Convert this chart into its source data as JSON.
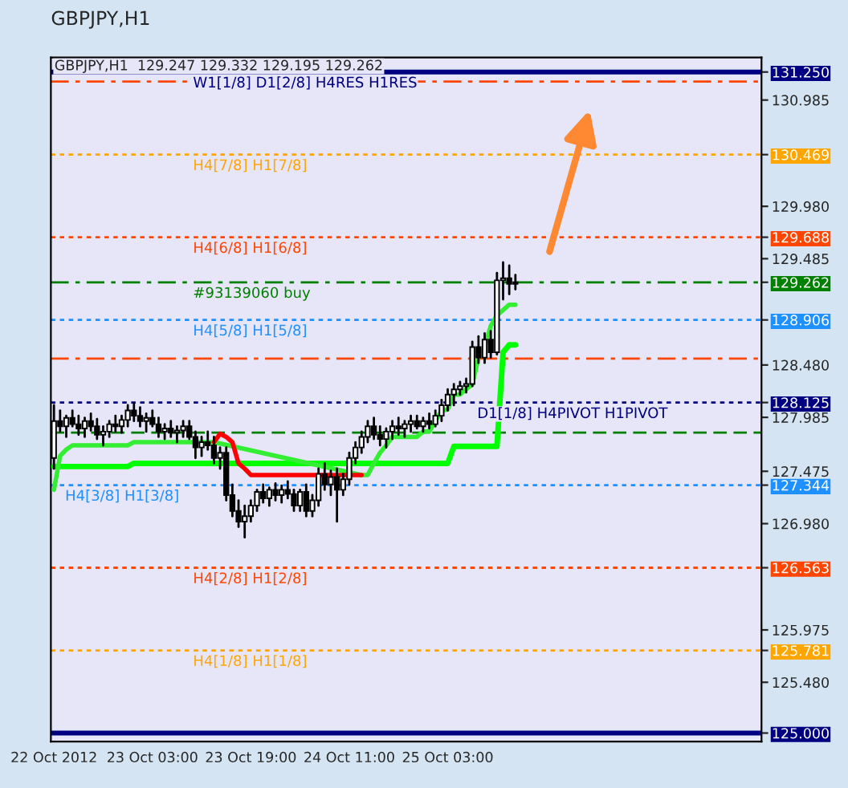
{
  "chart_data": {
    "type": "candlestick",
    "title": "GBPJPY,H1",
    "annotations": [
      "GBPJPY,H1  129.247 129.332 129.195 129.262"
    ],
    "x": [
      "2012-10-22T11:00",
      "2012-10-22T12:00",
      "2012-10-22T13:00",
      "2012-10-22T14:00",
      "2012-10-22T15:00",
      "2012-10-22T16:00",
      "2012-10-22T17:00",
      "2012-10-22T18:00",
      "2012-10-22T19:00",
      "2012-10-22T20:00",
      "2012-10-22T21:00",
      "2012-10-22T22:00",
      "2012-10-22T23:00",
      "2012-10-23T00:00",
      "2012-10-23T01:00",
      "2012-10-23T02:00",
      "2012-10-23T03:00",
      "2012-10-23T04:00",
      "2012-10-23T05:00",
      "2012-10-23T06:00",
      "2012-10-23T07:00",
      "2012-10-23T08:00",
      "2012-10-23T09:00",
      "2012-10-23T10:00",
      "2012-10-23T11:00",
      "2012-10-23T12:00",
      "2012-10-23T13:00",
      "2012-10-23T14:00",
      "2012-10-23T15:00",
      "2012-10-23T16:00",
      "2012-10-23T17:00",
      "2012-10-23T18:00",
      "2012-10-23T19:00",
      "2012-10-23T20:00",
      "2012-10-23T21:00",
      "2012-10-23T22:00",
      "2012-10-23T23:00",
      "2012-10-24T00:00",
      "2012-10-24T01:00",
      "2012-10-24T02:00",
      "2012-10-24T03:00",
      "2012-10-24T04:00",
      "2012-10-24T05:00",
      "2012-10-24T06:00",
      "2012-10-24T07:00",
      "2012-10-24T08:00",
      "2012-10-24T09:00",
      "2012-10-24T10:00",
      "2012-10-24T11:00",
      "2012-10-24T12:00",
      "2012-10-24T13:00",
      "2012-10-24T14:00",
      "2012-10-24T15:00",
      "2012-10-24T16:00",
      "2012-10-24T17:00",
      "2012-10-24T18:00",
      "2012-10-24T19:00",
      "2012-10-24T20:00",
      "2012-10-24T21:00",
      "2012-10-24T22:00",
      "2012-10-24T23:00",
      "2012-10-25T00:00",
      "2012-10-25T01:00",
      "2012-10-25T02:00",
      "2012-10-25T03:00",
      "2012-10-25T04:00",
      "2012-10-25T05:00",
      "2012-10-25T06:00",
      "2012-10-25T07:00",
      "2012-10-25T08:00",
      "2012-10-25T09:00",
      "2012-10-25T10:00",
      "2012-10-25T11:00",
      "2012-10-25T12:00",
      "2012-10-25T13:00",
      "2012-10-25T14:00"
    ],
    "ohlc": [
      [
        127.6,
        128.1,
        127.5,
        127.95
      ],
      [
        127.95,
        128.05,
        127.85,
        127.9
      ],
      [
        127.9,
        128.0,
        127.8,
        127.98
      ],
      [
        127.98,
        128.05,
        127.9,
        127.92
      ],
      [
        127.92,
        128.0,
        127.82,
        127.88
      ],
      [
        127.88,
        127.98,
        127.8,
        127.95
      ],
      [
        127.95,
        128.02,
        127.86,
        127.9
      ],
      [
        127.9,
        127.97,
        127.78,
        127.82
      ],
      [
        127.82,
        127.9,
        127.72,
        127.85
      ],
      [
        127.85,
        127.95,
        127.8,
        127.92
      ],
      [
        127.92,
        128.0,
        127.85,
        127.9
      ],
      [
        127.9,
        128.0,
        127.84,
        127.96
      ],
      [
        127.96,
        128.1,
        127.9,
        128.05
      ],
      [
        128.05,
        128.12,
        127.95,
        128.0
      ],
      [
        128.0,
        128.08,
        127.9,
        127.95
      ],
      [
        127.95,
        128.02,
        127.85,
        127.98
      ],
      [
        127.98,
        128.05,
        127.9,
        127.92
      ],
      [
        127.92,
        127.98,
        127.8,
        127.85
      ],
      [
        127.85,
        127.92,
        127.78,
        127.88
      ],
      [
        127.88,
        127.95,
        127.8,
        127.84
      ],
      [
        127.84,
        127.9,
        127.75,
        127.86
      ],
      [
        127.86,
        127.95,
        127.8,
        127.9
      ],
      [
        127.9,
        127.95,
        127.78,
        127.8
      ],
      [
        127.8,
        127.85,
        127.6,
        127.7
      ],
      [
        127.7,
        127.8,
        127.62,
        127.75
      ],
      [
        127.75,
        127.85,
        127.68,
        127.72
      ],
      [
        127.72,
        127.8,
        127.55,
        127.6
      ],
      [
        127.6,
        127.7,
        127.5,
        127.65
      ],
      [
        127.65,
        127.7,
        127.2,
        127.25
      ],
      [
        127.25,
        127.35,
        127.05,
        127.1
      ],
      [
        127.1,
        127.2,
        126.95,
        127.0
      ],
      [
        127.0,
        127.15,
        126.85,
        127.05
      ],
      [
        127.05,
        127.2,
        127.0,
        127.15
      ],
      [
        127.15,
        127.3,
        127.1,
        127.28
      ],
      [
        127.28,
        127.35,
        127.18,
        127.22
      ],
      [
        127.22,
        127.32,
        127.15,
        127.3
      ],
      [
        127.3,
        127.36,
        127.2,
        127.25
      ],
      [
        127.25,
        127.34,
        127.18,
        127.3
      ],
      [
        127.3,
        127.38,
        127.22,
        127.26
      ],
      [
        127.26,
        127.3,
        127.1,
        127.15
      ],
      [
        127.15,
        127.3,
        127.1,
        127.28
      ],
      [
        127.28,
        127.35,
        127.05,
        127.1
      ],
      [
        127.1,
        127.25,
        127.05,
        127.2
      ],
      [
        127.2,
        127.5,
        127.15,
        127.45
      ],
      [
        127.45,
        127.55,
        127.3,
        127.35
      ],
      [
        127.35,
        127.48,
        127.25,
        127.42
      ],
      [
        127.42,
        127.5,
        127.0,
        127.3
      ],
      [
        127.3,
        127.45,
        127.25,
        127.4
      ],
      [
        127.4,
        127.65,
        127.35,
        127.6
      ],
      [
        127.6,
        127.75,
        127.55,
        127.7
      ],
      [
        127.7,
        127.85,
        127.65,
        127.8
      ],
      [
        127.8,
        127.95,
        127.75,
        127.9
      ],
      [
        127.9,
        127.98,
        127.78,
        127.82
      ],
      [
        127.82,
        127.9,
        127.72,
        127.78
      ],
      [
        127.78,
        127.88,
        127.7,
        127.85
      ],
      [
        127.85,
        127.95,
        127.78,
        127.9
      ],
      [
        127.9,
        127.98,
        127.82,
        127.88
      ],
      [
        127.88,
        127.95,
        127.8,
        127.92
      ],
      [
        127.92,
        128.0,
        127.85,
        127.95
      ],
      [
        127.95,
        128.0,
        127.88,
        127.9
      ],
      [
        127.9,
        127.98,
        127.85,
        127.95
      ],
      [
        127.95,
        128.02,
        127.88,
        127.92
      ],
      [
        127.92,
        128.05,
        127.9,
        128.0
      ],
      [
        128.0,
        128.15,
        127.95,
        128.1
      ],
      [
        128.1,
        128.25,
        128.05,
        128.2
      ],
      [
        128.2,
        128.3,
        128.1,
        128.25
      ],
      [
        128.25,
        128.32,
        128.2,
        128.28
      ],
      [
        128.28,
        128.35,
        128.22,
        128.3
      ],
      [
        128.3,
        128.7,
        128.28,
        128.65
      ],
      [
        128.65,
        128.75,
        128.5,
        128.55
      ],
      [
        128.55,
        128.78,
        128.5,
        128.72
      ],
      [
        128.72,
        128.8,
        128.55,
        128.6
      ],
      [
        128.6,
        129.35,
        128.58,
        129.28
      ],
      [
        129.28,
        129.45,
        129.1,
        129.3
      ],
      [
        129.3,
        129.42,
        129.15,
        129.247
      ],
      [
        129.247,
        129.332,
        129.195,
        129.262
      ]
    ],
    "series": [
      {
        "type": "line",
        "color": "#00ff00",
        "values": [
          127.52,
          127.52,
          127.52,
          127.52,
          127.52,
          127.52,
          127.52,
          127.52,
          127.52,
          127.52,
          127.52,
          127.52,
          127.52,
          127.55,
          127.55,
          127.55,
          127.55,
          127.55,
          127.55,
          127.55,
          127.55,
          127.55,
          127.55,
          127.55,
          127.55,
          127.55,
          127.55,
          127.55,
          127.55,
          127.55,
          127.55,
          127.55,
          127.55,
          127.55,
          127.55,
          127.55,
          127.55,
          127.55,
          127.55,
          127.55,
          127.55,
          127.55,
          127.55,
          127.55,
          127.55,
          127.55,
          127.55,
          127.55,
          127.55,
          127.55,
          127.55,
          127.55,
          127.55,
          127.55,
          127.55,
          127.55,
          127.55,
          127.55,
          127.55,
          127.55,
          127.55,
          127.55,
          127.55,
          127.55,
          127.55,
          127.71,
          127.71,
          127.71,
          127.71,
          127.71,
          127.71,
          127.71,
          127.71,
          128.6,
          128.67,
          128.67
        ]
      },
      {
        "type": "line",
        "color": "#33ee33",
        "values": [
          127.3,
          127.62,
          127.68,
          127.72,
          127.72,
          127.72,
          127.72,
          127.72,
          127.72,
          127.72,
          127.72,
          127.72,
          127.72,
          127.75,
          127.75,
          127.75,
          127.75,
          127.75,
          127.75,
          127.75,
          127.75,
          127.75,
          127.75,
          127.75,
          127.75,
          127.75,
          127.75,
          null,
          null,
          null,
          null,
          null,
          null,
          null,
          null,
          null,
          null,
          null,
          null,
          null,
          null,
          null,
          null,
          null,
          null,
          null,
          null,
          null,
          null,
          null,
          127.44,
          127.44,
          127.55,
          127.65,
          127.72,
          127.8,
          127.8,
          127.8,
          127.8,
          127.8,
          127.85,
          127.85,
          127.95,
          128.05,
          128.06,
          128.2,
          128.2,
          128.25,
          128.3,
          128.55,
          128.65,
          128.85,
          128.95,
          129.0,
          129.05,
          129.05
        ]
      },
      {
        "type": "line",
        "color": "#ff0000",
        "values": [
          null,
          null,
          null,
          null,
          null,
          null,
          null,
          null,
          null,
          null,
          null,
          null,
          null,
          null,
          null,
          null,
          null,
          null,
          null,
          null,
          null,
          null,
          null,
          null,
          null,
          null,
          127.75,
          127.83,
          127.8,
          127.75,
          127.55,
          127.5,
          127.44,
          127.44,
          127.44,
          127.44,
          127.44,
          127.44,
          127.44,
          127.44,
          127.44,
          127.44,
          127.44,
          127.44,
          127.44,
          127.44,
          127.44,
          127.44,
          127.44,
          127.44,
          127.44,
          null,
          null,
          null,
          null,
          null,
          null,
          null,
          null,
          null,
          null,
          null,
          null,
          null,
          null,
          null,
          null,
          null,
          null,
          null,
          null,
          null,
          null,
          null,
          null,
          null
        ]
      }
    ],
    "xlim": [
      "2012-10-22T10:30",
      "2012-10-27T06:00"
    ],
    "xticks": [
      {
        "value": "2012-10-22T11:00",
        "label": "22 Oct 2012"
      },
      {
        "value": "2012-10-23T03:00",
        "label": "23 Oct 03:00"
      },
      {
        "value": "2012-10-23T19:00",
        "label": "23 Oct 19:00"
      },
      {
        "value": "2012-10-24T11:00",
        "label": "24 Oct 11:00"
      },
      {
        "value": "2012-10-25T03:00",
        "label": "25 Oct 03:00"
      }
    ],
    "ylim": [
      124.92,
      131.387
    ],
    "yticks": [
      {
        "value": 131.25,
        "label": "131.250"
      },
      {
        "value": 130.985,
        "label": "130.985"
      },
      {
        "value": 130.469,
        "label": "130.469"
      },
      {
        "value": 129.98,
        "label": "129.980"
      },
      {
        "value": 129.688,
        "label": "129.688"
      },
      {
        "value": 129.485,
        "label": "129.485"
      },
      {
        "value": 129.262,
        "label": "129.262"
      },
      {
        "value": 128.906,
        "label": "128.906"
      },
      {
        "value": 128.48,
        "label": "128.480"
      },
      {
        "value": 128.125,
        "label": "128.125"
      },
      {
        "value": 127.985,
        "label": "127.985"
      },
      {
        "value": 127.475,
        "label": "127.475"
      },
      {
        "value": 127.344,
        "label": "127.344"
      },
      {
        "value": 126.98,
        "label": "126.980"
      },
      {
        "value": 126.563,
        "label": "126.563"
      },
      {
        "value": 125.975,
        "label": "125.975"
      },
      {
        "value": 125.781,
        "label": "125.781"
      },
      {
        "value": 125.48,
        "label": "125.480"
      },
      {
        "value": 125.0,
        "label": "125.000"
      }
    ],
    "ref_lines": [
      {
        "axis": "y",
        "value": 131.25,
        "label": "W1[1/8] D1[2/8] H4RES H1RES",
        "color": "#000080",
        "line_style": "solid"
      },
      {
        "axis": "y",
        "value": 131.16,
        "color": "#ff4500",
        "line_style": "dashdot"
      },
      {
        "axis": "y",
        "value": 130.469,
        "label": "H4[7/8] H1[7/8]",
        "color": "#ffa500",
        "line_style": "dotted"
      },
      {
        "axis": "y",
        "value": 129.688,
        "label": "H4[6/8] H1[6/8]",
        "color": "#ff4500",
        "line_style": "dotted"
      },
      {
        "axis": "y",
        "value": 129.262,
        "label": "#93139060 buy",
        "color": "#008000",
        "line_style": "dashdot"
      },
      {
        "axis": "y",
        "value": 128.906,
        "label": "H4[5/8] H1[5/8]",
        "color": "#1e90ff",
        "line_style": "dotted"
      },
      {
        "axis": "y",
        "value": 128.54,
        "color": "#ff4500",
        "line_style": "dashdot"
      },
      {
        "axis": "y",
        "value": 128.125,
        "label": "D1[1/8] H4PIVOT H1PIVOT",
        "color": "#000080",
        "line_style": "dotted"
      },
      {
        "axis": "y",
        "value": 127.84,
        "color": "#008000",
        "line_style": "dashed"
      },
      {
        "axis": "y",
        "value": 127.344,
        "label": "H4[3/8] H1[3/8]",
        "color": "#1e90ff",
        "line_style": "dotted"
      },
      {
        "axis": "y",
        "value": 126.563,
        "label": "H4[2/8] H1[2/8]",
        "color": "#ff4500",
        "line_style": "dotted"
      },
      {
        "axis": "y",
        "value": 125.781,
        "label": "H4[1/8] H1[1/8]",
        "color": "#ffa500",
        "line_style": "dotted"
      },
      {
        "axis": "y",
        "value": 125.0,
        "color": "#000080",
        "line_style": "solid"
      }
    ]
  }
}
